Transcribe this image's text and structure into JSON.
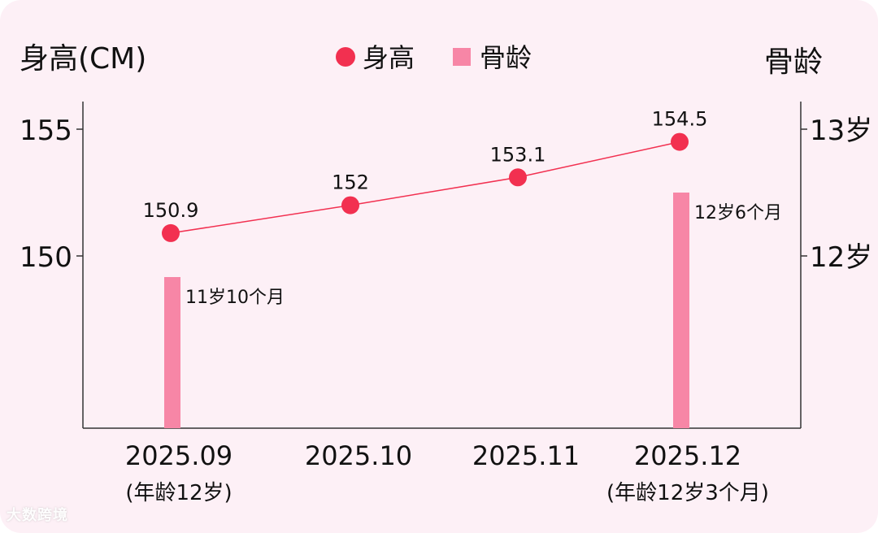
{
  "chart_data": {
    "type": "line+bar",
    "left_axis": {
      "label": "身高(CM)",
      "ticks": [
        150,
        155
      ],
      "range": [
        145,
        156
      ]
    },
    "right_axis": {
      "label": "骨龄",
      "ticks": [
        "12岁",
        "13岁"
      ],
      "tick_values_months": [
        144,
        156
      ],
      "range_months": [
        118,
        158
      ]
    },
    "legend": [
      {
        "name": "身高",
        "marker": "circle"
      },
      {
        "name": "骨龄",
        "marker": "square"
      }
    ],
    "categories": [
      "2025.09",
      "2025.10",
      "2025.11",
      "2025.12"
    ],
    "category_sublabels": [
      "(年龄12岁)",
      "",
      "",
      "(年龄12岁3个月)"
    ],
    "series": [
      {
        "name": "身高",
        "type": "line",
        "values": [
          150.9,
          152,
          153.1,
          154.5
        ],
        "labels": [
          "150.9",
          "152",
          "153.1",
          "154.5"
        ]
      },
      {
        "name": "骨龄",
        "type": "bar",
        "values_months": [
          142,
          null,
          null,
          150
        ],
        "labels": [
          "11岁10个月",
          "",
          "",
          "12岁6个月"
        ]
      }
    ],
    "colors": {
      "line": "#f23050",
      "bar": "#f786a6",
      "background": "#fdf0f6",
      "axis": "#333333"
    }
  },
  "watermark": "大数跨境"
}
